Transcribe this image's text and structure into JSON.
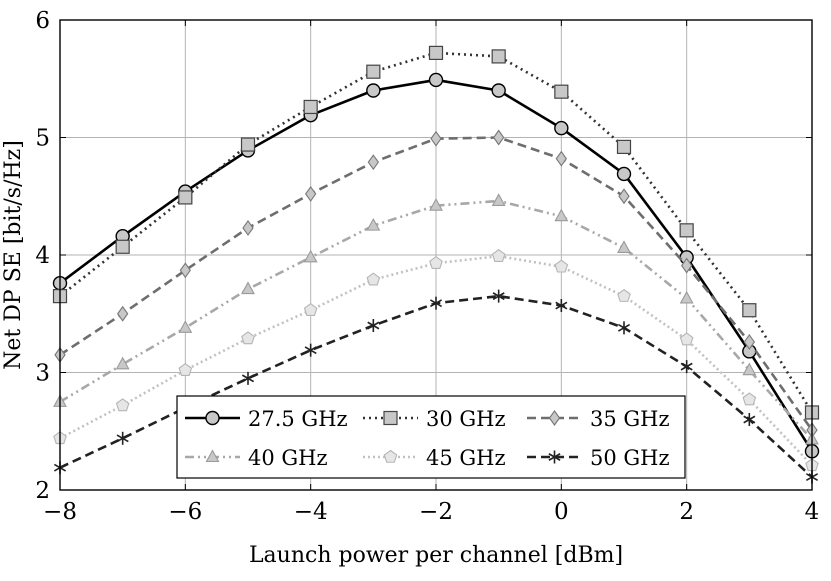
{
  "chart_data": {
    "type": "line",
    "xlabel": "Launch power per channel [dBm]",
    "ylabel": "Net DP SE [bit/s/Hz]",
    "xlim": [
      -8,
      4
    ],
    "ylim": [
      2,
      6
    ],
    "x_ticks": [
      -8,
      -6,
      -4,
      -2,
      0,
      2,
      4
    ],
    "x_tick_labels": [
      "−8",
      "−6",
      "−4",
      "−2",
      "0",
      "2",
      "4"
    ],
    "y_ticks": [
      2,
      3,
      4,
      5,
      6
    ],
    "y_tick_labels": [
      "2",
      "3",
      "4",
      "5",
      "6"
    ],
    "grid": true,
    "legend_position": "bottom-center",
    "x": [
      -8,
      -7,
      -6,
      -5,
      -4,
      -3,
      -2,
      -1,
      0,
      1,
      2,
      3,
      4
    ],
    "series": [
      {
        "name": "27.5 GHz",
        "marker": "circle",
        "dash": "solid",
        "line_color": "#000000",
        "marker_fill": "#c8c8c8",
        "values": [
          3.76,
          4.16,
          4.54,
          4.89,
          5.19,
          5.4,
          5.49,
          5.4,
          5.08,
          4.69,
          3.98,
          3.18,
          2.33
        ]
      },
      {
        "name": "30 GHz",
        "marker": "square",
        "dash": "dotted",
        "line_color": "#333333",
        "marker_fill": "#c8c8c8",
        "values": [
          3.65,
          4.07,
          4.49,
          4.94,
          5.26,
          5.56,
          5.72,
          5.69,
          5.39,
          4.92,
          4.21,
          3.53,
          2.66
        ]
      },
      {
        "name": "35 GHz",
        "marker": "diamond",
        "dash": "dashed",
        "line_color": "#6e6e6e",
        "marker_fill": "#c8c8c8",
        "values": [
          3.15,
          3.5,
          3.87,
          4.23,
          4.52,
          4.79,
          4.99,
          5.0,
          4.82,
          4.5,
          3.91,
          3.26,
          2.51
        ]
      },
      {
        "name": "40 GHz",
        "marker": "triangle",
        "dash": "dash-dot-dot",
        "line_color": "#a8a8a8",
        "marker_fill": "#c8c8c8",
        "values": [
          2.75,
          3.07,
          3.38,
          3.71,
          3.98,
          4.25,
          4.42,
          4.46,
          4.33,
          4.06,
          3.63,
          3.02,
          2.43
        ]
      },
      {
        "name": "45 GHz",
        "marker": "pentagon",
        "dash": "densely-dotted",
        "line_color": "#c2c2c2",
        "marker_fill": "#e6e6e6",
        "values": [
          2.44,
          2.72,
          3.02,
          3.29,
          3.53,
          3.79,
          3.93,
          3.99,
          3.9,
          3.65,
          3.28,
          2.77,
          2.21
        ]
      },
      {
        "name": "50 GHz",
        "marker": "asterisk",
        "dash": "dashed",
        "line_color": "#222222",
        "marker_fill": "#222222",
        "values": [
          2.19,
          2.44,
          2.7,
          2.95,
          3.19,
          3.4,
          3.59,
          3.65,
          3.57,
          3.38,
          3.05,
          2.6,
          2.11
        ]
      }
    ]
  }
}
